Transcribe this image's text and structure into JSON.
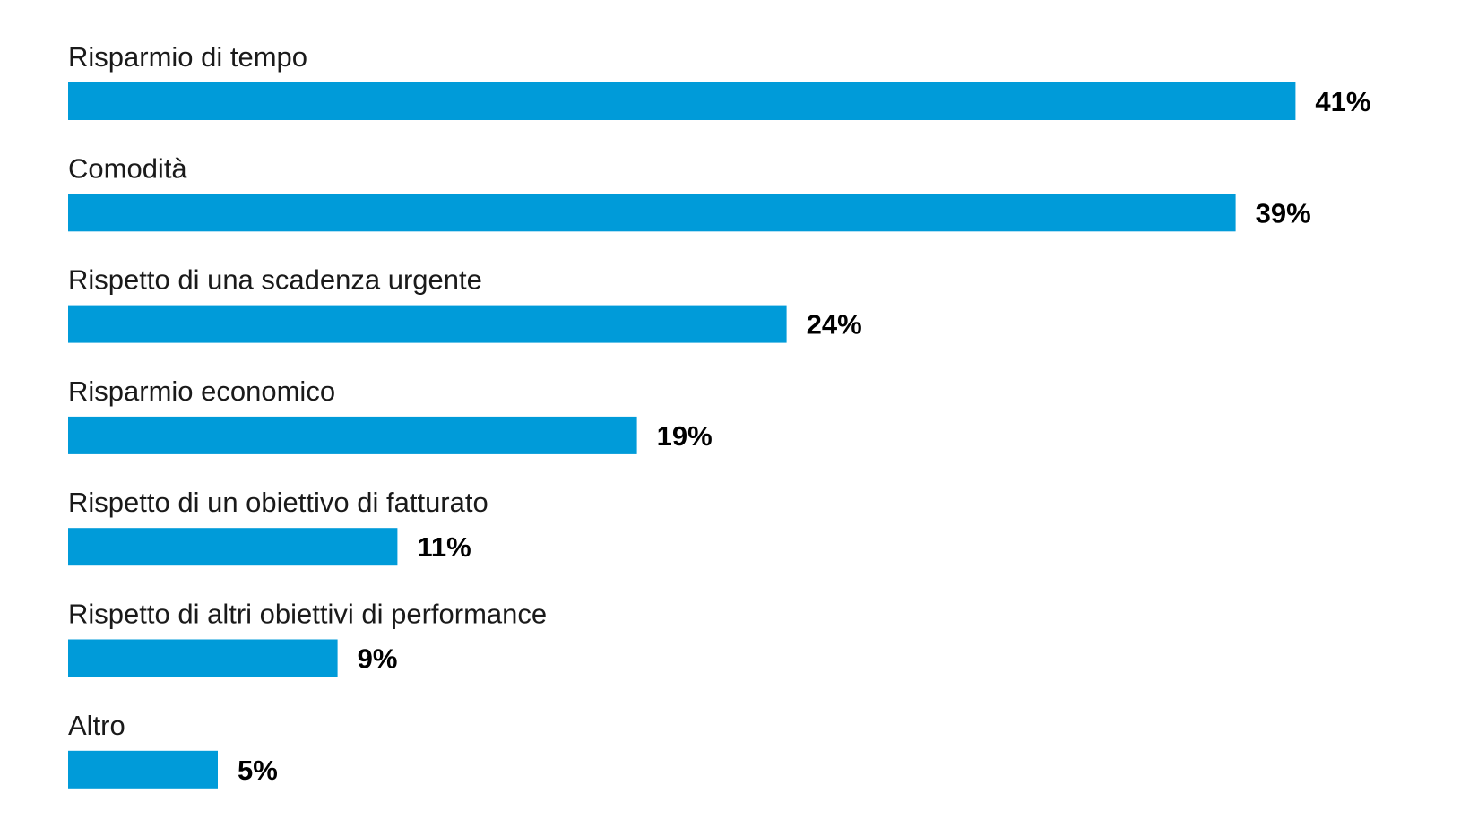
{
  "chart_data": {
    "type": "bar",
    "orientation": "horizontal",
    "categories": [
      "Risparmio di tempo",
      "Comodità",
      "Rispetto di una scadenza urgente",
      "Risparmio economico",
      "Rispetto di un obiettivo di fatturato",
      "Rispetto di altri obiettivi di performance",
      "Altro"
    ],
    "values": [
      41,
      39,
      24,
      19,
      11,
      9,
      5
    ],
    "value_labels": [
      "41%",
      "39%",
      "24%",
      "19%",
      "11%",
      "9%",
      "5%"
    ],
    "unit": "%",
    "bar_color": "#009bd9",
    "grid": false,
    "legend": "none"
  }
}
